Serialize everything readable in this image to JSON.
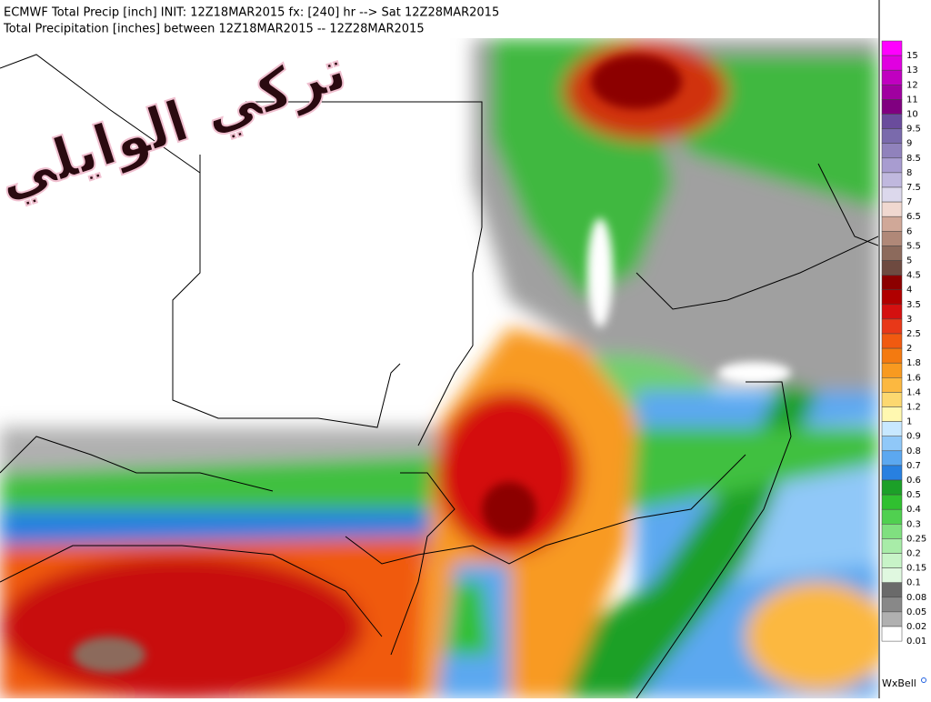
{
  "header": {
    "line1": "ECMWF Total Precip [inch] INIT: 12Z18MAR2015 fx: [240] hr --> Sat 12Z28MAR2015",
    "line2": "Total Precipitation [inches] between 12Z18MAR2015 -- 12Z28MAR2015"
  },
  "watermark": "تركي الوايلي",
  "legend": {
    "items": [
      {
        "label": "15",
        "color": "#ff00ff"
      },
      {
        "label": "13",
        "color": "#e000e0"
      },
      {
        "label": "12",
        "color": "#c000c0"
      },
      {
        "label": "11",
        "color": "#a000a0"
      },
      {
        "label": "10",
        "color": "#800080"
      },
      {
        "label": "9.5",
        "color": "#6a4c9c"
      },
      {
        "label": "9",
        "color": "#7a6aac"
      },
      {
        "label": "8.5",
        "color": "#9082bc"
      },
      {
        "label": "8",
        "color": "#a89cd0"
      },
      {
        "label": "7.5",
        "color": "#c0b8de"
      },
      {
        "label": "7",
        "color": "#dcd8ec"
      },
      {
        "label": "6.5",
        "color": "#f0d8d0"
      },
      {
        "label": "6",
        "color": "#d0a898"
      },
      {
        "label": "5.5",
        "color": "#b08878"
      },
      {
        "label": "5",
        "color": "#8c6a5c"
      },
      {
        "label": "4.5",
        "color": "#6e4a40"
      },
      {
        "label": "4",
        "color": "#8c0000"
      },
      {
        "label": "3.5",
        "color": "#b00000"
      },
      {
        "label": "3",
        "color": "#d41010"
      },
      {
        "label": "2.5",
        "color": "#e83818"
      },
      {
        "label": "2",
        "color": "#f05a10"
      },
      {
        "label": "1.8",
        "color": "#f47a10"
      },
      {
        "label": "1.6",
        "color": "#f89a20"
      },
      {
        "label": "1.4",
        "color": "#fcb840"
      },
      {
        "label": "1.2",
        "color": "#fcd870"
      },
      {
        "label": "1",
        "color": "#fff8b0"
      },
      {
        "label": "0.9",
        "color": "#c8e8ff"
      },
      {
        "label": "0.8",
        "color": "#90c8f8"
      },
      {
        "label": "0.7",
        "color": "#5ca8f0"
      },
      {
        "label": "0.6",
        "color": "#2880e0"
      },
      {
        "label": "0.5",
        "color": "#1ca028"
      },
      {
        "label": "0.4",
        "color": "#30c030"
      },
      {
        "label": "0.3",
        "color": "#50d050"
      },
      {
        "label": "0.25",
        "color": "#80e080"
      },
      {
        "label": "0.2",
        "color": "#a8eca8"
      },
      {
        "label": "0.15",
        "color": "#c8f4c8"
      },
      {
        "label": "0.1",
        "color": "#e0f8e0"
      },
      {
        "label": "0.08",
        "color": "#6a6a6a"
      },
      {
        "label": "0.05",
        "color": "#888888"
      },
      {
        "label": "0.02",
        "color": "#b0b0b0"
      },
      {
        "label": "0.01",
        "color": "#ffffff"
      }
    ]
  },
  "credit": "WxBell"
}
